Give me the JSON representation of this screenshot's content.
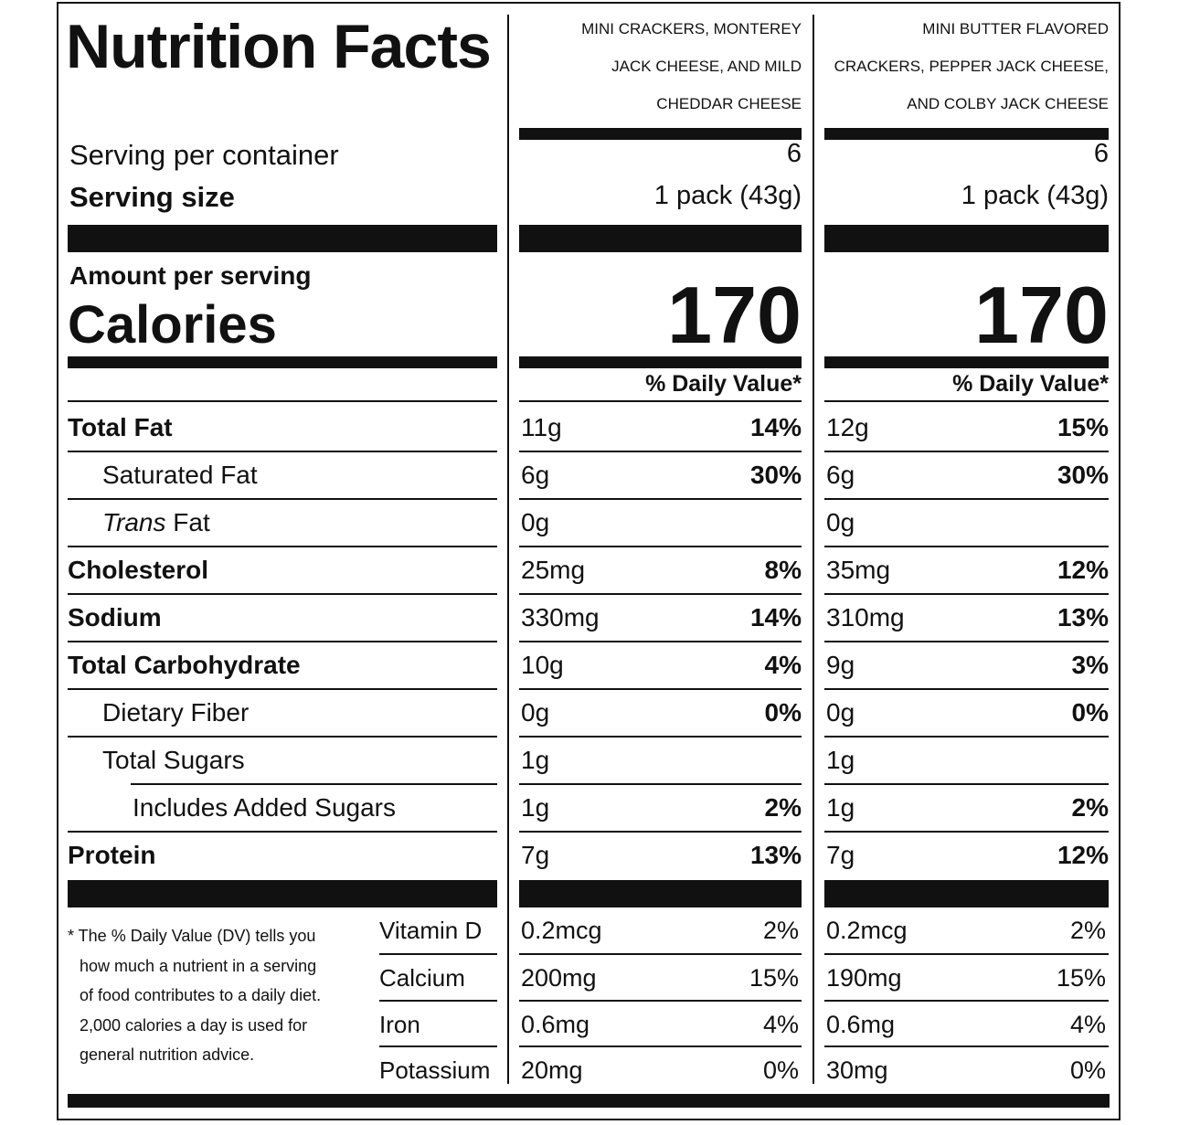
{
  "title": "Nutrition Facts",
  "products": [
    {
      "name_lines": [
        "MINI CRACKERS, MONTEREY",
        "JACK CHEESE, AND MILD",
        "CHEDDAR CHEESE"
      ],
      "servings_per_container": "6",
      "serving_size": "1 pack (43g)",
      "calories": "170",
      "dv_header": "% Daily Value*",
      "nutrients": [
        {
          "amount": "11g",
          "dv": "14%"
        },
        {
          "amount": "6g",
          "dv": "30%"
        },
        {
          "amount": "0g",
          "dv": ""
        },
        {
          "amount": "25mg",
          "dv": "8%"
        },
        {
          "amount": "330mg",
          "dv": "14%"
        },
        {
          "amount": "10g",
          "dv": "4%"
        },
        {
          "amount": "0g",
          "dv": "0%"
        },
        {
          "amount": "1g",
          "dv": ""
        },
        {
          "amount": "1g",
          "dv": "2%"
        },
        {
          "amount": "7g",
          "dv": "13%"
        }
      ],
      "vitamins": [
        {
          "amount": "0.2mcg",
          "dv": "2%"
        },
        {
          "amount": "200mg",
          "dv": "15%"
        },
        {
          "amount": "0.6mg",
          "dv": "4%"
        },
        {
          "amount": "20mg",
          "dv": "0%"
        }
      ]
    },
    {
      "name_lines": [
        "MINI BUTTER FLAVORED",
        "CRACKERS, PEPPER JACK CHEESE,",
        "AND COLBY JACK CHEESE"
      ],
      "servings_per_container": "6",
      "serving_size": "1 pack (43g)",
      "calories": "170",
      "dv_header": "% Daily Value*",
      "nutrients": [
        {
          "amount": "12g",
          "dv": "15%"
        },
        {
          "amount": "6g",
          "dv": "30%"
        },
        {
          "amount": "0g",
          "dv": ""
        },
        {
          "amount": "35mg",
          "dv": "12%"
        },
        {
          "amount": "310mg",
          "dv": "13%"
        },
        {
          "amount": "9g",
          "dv": "3%"
        },
        {
          "amount": "0g",
          "dv": "0%"
        },
        {
          "amount": "1g",
          "dv": ""
        },
        {
          "amount": "1g",
          "dv": "2%"
        },
        {
          "amount": "7g",
          "dv": "12%"
        }
      ],
      "vitamins": [
        {
          "amount": "0.2mcg",
          "dv": "2%"
        },
        {
          "amount": "190mg",
          "dv": "15%"
        },
        {
          "amount": "0.6mg",
          "dv": "4%"
        },
        {
          "amount": "30mg",
          "dv": "0%"
        }
      ]
    }
  ],
  "labels": {
    "servings_per_container": "Serving per container",
    "serving_size": "Serving size",
    "amount_per_serving": "Amount per serving",
    "calories": "Calories"
  },
  "nutrient_names": [
    {
      "name": "Total Fat",
      "bold": true,
      "indent": 0
    },
    {
      "name": "Saturated Fat",
      "bold": false,
      "indent": 1
    },
    {
      "name": "Trans",
      "suffix": " Fat",
      "italic": true,
      "bold": false,
      "indent": 1
    },
    {
      "name": "Cholesterol",
      "bold": true,
      "indent": 0
    },
    {
      "name": "Sodium",
      "bold": true,
      "indent": 0
    },
    {
      "name": "Total Carbohydrate",
      "bold": true,
      "indent": 0
    },
    {
      "name": "Dietary Fiber",
      "bold": false,
      "indent": 1
    },
    {
      "name": "Total Sugars",
      "bold": false,
      "indent": 1
    },
    {
      "name": "Includes Added Sugars",
      "bold": false,
      "indent": 2
    },
    {
      "name": "Protein",
      "bold": true,
      "indent": 0
    }
  ],
  "vitamin_names": [
    "Vitamin D",
    "Calcium",
    "Iron",
    "Potassium"
  ],
  "footnote_lines": [
    "* The % Daily Value (DV) tells you",
    "how much a nutrient in a serving",
    "of food contributes to a daily diet.",
    "2,000 calories a day is used for",
    "general nutrition advice."
  ]
}
